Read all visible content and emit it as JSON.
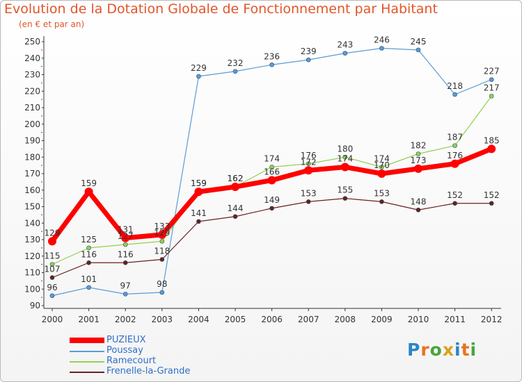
{
  "chart_data": {
    "type": "line",
    "title": "Evolution de la Dotation Globale de Fonctionnement par Habitant",
    "subtitle": "(en € et par an)",
    "xlabel": "",
    "ylabel": "",
    "ylim": [
      90,
      250
    ],
    "yticks": [
      "90",
      "100",
      "110",
      "120",
      "130",
      "140",
      "150",
      "160",
      "170",
      "180",
      "190",
      "200",
      "210",
      "220",
      "230",
      "240",
      "250"
    ],
    "categories": [
      "2000",
      "2001",
      "2002",
      "2003",
      "2004",
      "2005",
      "2006",
      "2007",
      "2008",
      "2009",
      "2010",
      "2011",
      "2012"
    ],
    "grid": false,
    "legend_position": "bottom-left",
    "series": [
      {
        "name": "PUZIEUX",
        "color": "#ff0000",
        "values": [
          129,
          159,
          131,
          133,
          159,
          162,
          166,
          172,
          174,
          170,
          173,
          176,
          185
        ]
      },
      {
        "name": "Poussay",
        "color": "#5b9bd5",
        "values": [
          96,
          101,
          97,
          98,
          229,
          232,
          236,
          239,
          243,
          246,
          245,
          218,
          227
        ]
      },
      {
        "name": "Ramecourt",
        "color": "#92d050",
        "values": [
          115,
          125,
          127,
          129,
          159,
          162,
          174,
          176,
          180,
          174,
          182,
          187,
          217
        ]
      },
      {
        "name": "Frenelle-la-Grande",
        "color": "#6b1f1f",
        "values": [
          107,
          116,
          116,
          118,
          141,
          144,
          149,
          153,
          155,
          153,
          148,
          152,
          152
        ]
      }
    ]
  },
  "logo": {
    "letters": [
      "P",
      "r",
      "o",
      "x",
      "i",
      "t",
      "i"
    ],
    "colors": [
      "#2b86c5",
      "#e8741e",
      "#4aa33c",
      "#d8a21c",
      "#2b86c5",
      "#e8741e",
      "#4aa33c"
    ]
  }
}
